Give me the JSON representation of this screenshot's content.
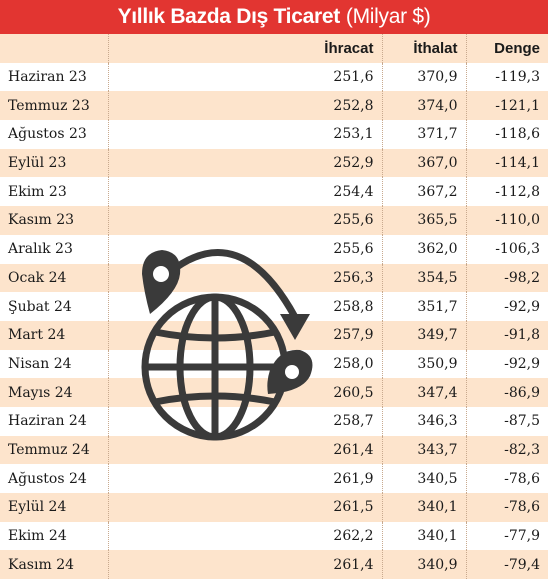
{
  "title": {
    "bold": "Yıllık Bazda Dış Ticaret",
    "unit": "(Milyar $)"
  },
  "columns": [
    "İhracat",
    "İthalat",
    "Denge"
  ],
  "rows": [
    {
      "label": "Haziran 23",
      "ihracat": "251,6",
      "ithalat": "370,9",
      "denge": "-119,3"
    },
    {
      "label": "Temmuz 23",
      "ihracat": "252,8",
      "ithalat": "374,0",
      "denge": "-121,1"
    },
    {
      "label": "Ağustos 23",
      "ihracat": "253,1",
      "ithalat": "371,7",
      "denge": "-118,6"
    },
    {
      "label": "Eylül 23",
      "ihracat": "252,9",
      "ithalat": "367,0",
      "denge": "-114,1"
    },
    {
      "label": "Ekim 23",
      "ihracat": "254,4",
      "ithalat": "367,2",
      "denge": "-112,8"
    },
    {
      "label": "Kasım 23",
      "ihracat": "255,6",
      "ithalat": "365,5",
      "denge": "-110,0"
    },
    {
      "label": "Aralık 23",
      "ihracat": "255,6",
      "ithalat": "362,0",
      "denge": "-106,3"
    },
    {
      "label": "Ocak 24",
      "ihracat": "256,3",
      "ithalat": "354,5",
      "denge": "-98,2"
    },
    {
      "label": "Şubat 24",
      "ihracat": "258,8",
      "ithalat": "351,7",
      "denge": "-92,9"
    },
    {
      "label": "Mart 24",
      "ihracat": "257,9",
      "ithalat": "349,7",
      "denge": "-91,8"
    },
    {
      "label": "Nisan 24",
      "ihracat": "258,0",
      "ithalat": "350,9",
      "denge": "-92,9"
    },
    {
      "label": "Mayıs 24",
      "ihracat": "260,5",
      "ithalat": "347,4",
      "denge": "-86,9"
    },
    {
      "label": "Haziran 24",
      "ihracat": "258,7",
      "ithalat": "346,3",
      "denge": "-87,5"
    },
    {
      "label": "Temmuz 24",
      "ihracat": "261,4",
      "ithalat": "343,7",
      "denge": "-82,3"
    },
    {
      "label": "Ağustos 24",
      "ihracat": "261,9",
      "ithalat": "340,5",
      "denge": "-78,6"
    },
    {
      "label": "Eylül 24",
      "ihracat": "261,5",
      "ithalat": "340,1",
      "denge": "-78,6"
    },
    {
      "label": "Ekim 24",
      "ihracat": "262,2",
      "ithalat": "340,1",
      "denge": "-77,9"
    },
    {
      "label": "Kasım 24",
      "ihracat": "261,4",
      "ithalat": "340,9",
      "denge": "-79,4"
    }
  ],
  "colors": {
    "title_bg": "#e23531",
    "stripe": "#fde4cc",
    "icon": "#3a3a3a"
  },
  "icons": {
    "decoration": "globe-trade-icon"
  }
}
